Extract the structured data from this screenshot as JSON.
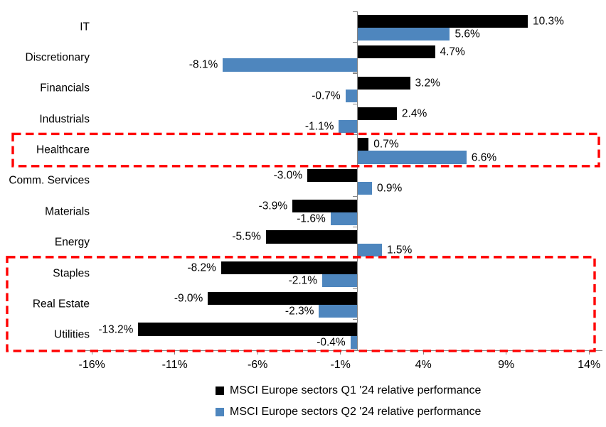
{
  "chart_data": {
    "type": "bar",
    "orientation": "horizontal",
    "title": "",
    "xlabel": "",
    "ylabel": "",
    "categories": [
      "IT",
      "Discretionary",
      "Financials",
      "Industrials",
      "Healthcare",
      "Comm. Services",
      "Materials",
      "Energy",
      "Staples",
      "Real Estate",
      "Utilities"
    ],
    "series": [
      {
        "name": "MSCI Europe sectors Q1 '24 relative performance",
        "color": "#000000",
        "values": [
          10.3,
          4.7,
          3.2,
          2.4,
          0.7,
          -3.0,
          -3.9,
          -5.5,
          -8.2,
          -9.0,
          -13.2
        ],
        "labels": [
          "10.3%",
          "4.7%",
          "3.2%",
          "2.4%",
          "0.7%",
          "-3.0%",
          "-3.9%",
          "-5.5%",
          "-8.2%",
          "-9.0%",
          "-13.2%"
        ]
      },
      {
        "name": "MSCI Europe sectors Q2 '24 relative performance",
        "color": "#4E86BE",
        "values": [
          5.6,
          -8.1,
          -0.7,
          -1.1,
          6.6,
          0.9,
          -1.6,
          1.5,
          -2.1,
          -2.3,
          -0.4
        ],
        "labels": [
          "5.6%",
          "-8.1%",
          "-0.7%",
          "-1.1%",
          "6.6%",
          "0.9%",
          "-1.6%",
          "1.5%",
          "-2.1%",
          "-2.3%",
          "-0.4%"
        ]
      }
    ],
    "x_ticks": [
      -16,
      -11,
      -6,
      -1,
      4,
      9,
      14
    ],
    "x_tick_labels": [
      "-16%",
      "-11%",
      "-6%",
      "-1%",
      "4%",
      "9%",
      "14%"
    ],
    "xlim": [
      -16.7,
      14.8
    ],
    "grid": false,
    "legend_position": "bottom",
    "value_labels_shown": true,
    "highlighted_groups": [
      [
        "Healthcare"
      ],
      [
        "Staples",
        "Real Estate",
        "Utilities"
      ]
    ],
    "highlight_color": "#FF0000",
    "axis_color": "#848484",
    "background_color": "#FFFFFF"
  }
}
